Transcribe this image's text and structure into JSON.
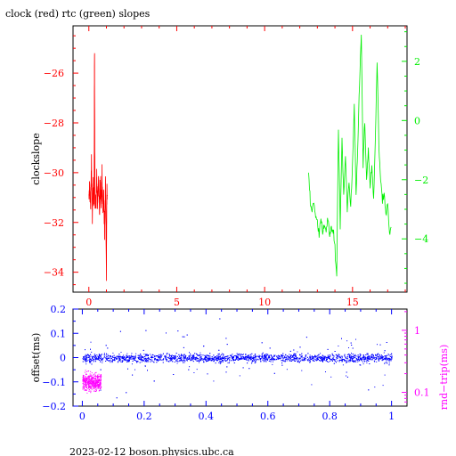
{
  "title": "clock (red) rtc (green) slopes",
  "footer": "2023-02-12  boson.physics.ubc.ca",
  "colors": {
    "clock": "#ff0000",
    "rtc": "#00ee00",
    "offset": "#0000ff",
    "roundtrip": "#ff00ff",
    "frame": "#000000"
  },
  "chart_data": [
    {
      "type": "line",
      "title": "clock (red) rtc (green) slopes",
      "ylabel": "clockslope",
      "xlim": [
        -0.9,
        18.1
      ],
      "ylim": [
        -34.8,
        -24.1
      ],
      "xticks": [
        0,
        5,
        10,
        15
      ],
      "xtick_labels": [
        "0",
        "5",
        "10",
        "15"
      ],
      "yticks": [
        -34,
        -32,
        -30,
        -28,
        -26
      ],
      "ytick_labels": [
        "−34",
        "−32",
        "−30",
        "−28",
        "−26"
      ],
      "y2lim": [
        -5.8,
        3.2
      ],
      "y2ticks": [
        -4,
        -2,
        0,
        2
      ],
      "y2tick_labels": [
        "−4",
        "−2",
        "0",
        "2"
      ],
      "series": [
        {
          "color": "#ff0000",
          "axis": "left",
          "x": [
            0.0,
            0.05,
            0.1,
            0.15,
            0.2,
            0.25,
            0.3,
            0.32,
            0.35,
            0.4,
            0.45,
            0.5,
            0.55,
            0.6,
            0.65,
            0.7,
            0.75,
            0.8,
            0.85,
            0.9,
            0.95,
            1.0,
            1.02,
            1.05
          ],
          "values": [
            -31.2,
            -30.4,
            -31.6,
            -29.5,
            -31.8,
            -30.6,
            -31.3,
            -25.0,
            -30.9,
            -31.5,
            -30.0,
            -31.4,
            -30.2,
            -31.7,
            -30.5,
            -31.2,
            -30.1,
            -31.5,
            -30.8,
            -32.7,
            -30.2,
            -34.4,
            -31.0,
            -30.9
          ]
        },
        {
          "color": "#00ee00",
          "axis": "right",
          "x": [
            12.5,
            12.6,
            12.7,
            12.8,
            12.9,
            13.0,
            13.1,
            13.2,
            13.3,
            13.4,
            13.5,
            13.6,
            13.7,
            13.8,
            13.9,
            14.0,
            14.1,
            14.2,
            14.3,
            14.4,
            14.5,
            14.6,
            14.7,
            14.8,
            14.9,
            15.0,
            15.1,
            15.2,
            15.3,
            15.4,
            15.5,
            15.6,
            15.7,
            15.8,
            15.9,
            16.0,
            16.1,
            16.2,
            16.3,
            16.4,
            16.5,
            16.6,
            16.7,
            16.8,
            16.9,
            17.0,
            17.1,
            17.2
          ],
          "values": [
            -1.8,
            -2.8,
            -3.0,
            -2.7,
            -3.3,
            -3.4,
            -3.8,
            -3.2,
            -3.9,
            -3.5,
            -3.7,
            -3.3,
            -4.0,
            -3.6,
            -3.8,
            -4.3,
            -5.3,
            -0.2,
            -3.5,
            -0.6,
            -2.6,
            -1.2,
            -3.0,
            -2.0,
            -3.0,
            -1.5,
            0.5,
            -2.5,
            -0.8,
            1.2,
            2.9,
            -1.6,
            0.0,
            -2.0,
            -1.0,
            -2.2,
            -1.6,
            -2.6,
            -0.5,
            2.0,
            -0.8,
            -2.0,
            -2.8,
            -2.4,
            -3.2,
            -2.8,
            -3.9,
            -3.6
          ]
        }
      ]
    },
    {
      "type": "scatter",
      "ylabel": "offset(ms)",
      "y2label": "rnd−trip(ms)",
      "xlim": [
        -0.03,
        1.05
      ],
      "ylim": [
        -0.2,
        0.2
      ],
      "xticks": [
        0,
        0.2,
        0.4,
        0.6,
        0.8,
        1
      ],
      "xtick_labels": [
        "0",
        "0.2",
        "0.4",
        "0.6",
        "0.8",
        "1"
      ],
      "yticks": [
        -0.2,
        -0.1,
        0,
        0.1,
        0.2
      ],
      "ytick_labels": [
        "−0.2",
        "−0.1",
        "0",
        "0.1",
        "0.2"
      ],
      "y2_scale": "log",
      "y2lim": [
        0.06,
        2.2
      ],
      "y2ticks": [
        0.1,
        1
      ],
      "y2tick_labels": [
        "0.1",
        "1"
      ],
      "series": [
        {
          "color": "#0000ff",
          "axis": "left",
          "x_range": [
            0,
            1
          ],
          "center": 0.0,
          "spread": 0.012,
          "outliers_spread": 0.09
        },
        {
          "color": "#ff00ff",
          "axis": "right",
          "x_range": [
            0,
            0.06
          ],
          "center": 0.15,
          "spread_factor": 1.25
        }
      ]
    }
  ]
}
